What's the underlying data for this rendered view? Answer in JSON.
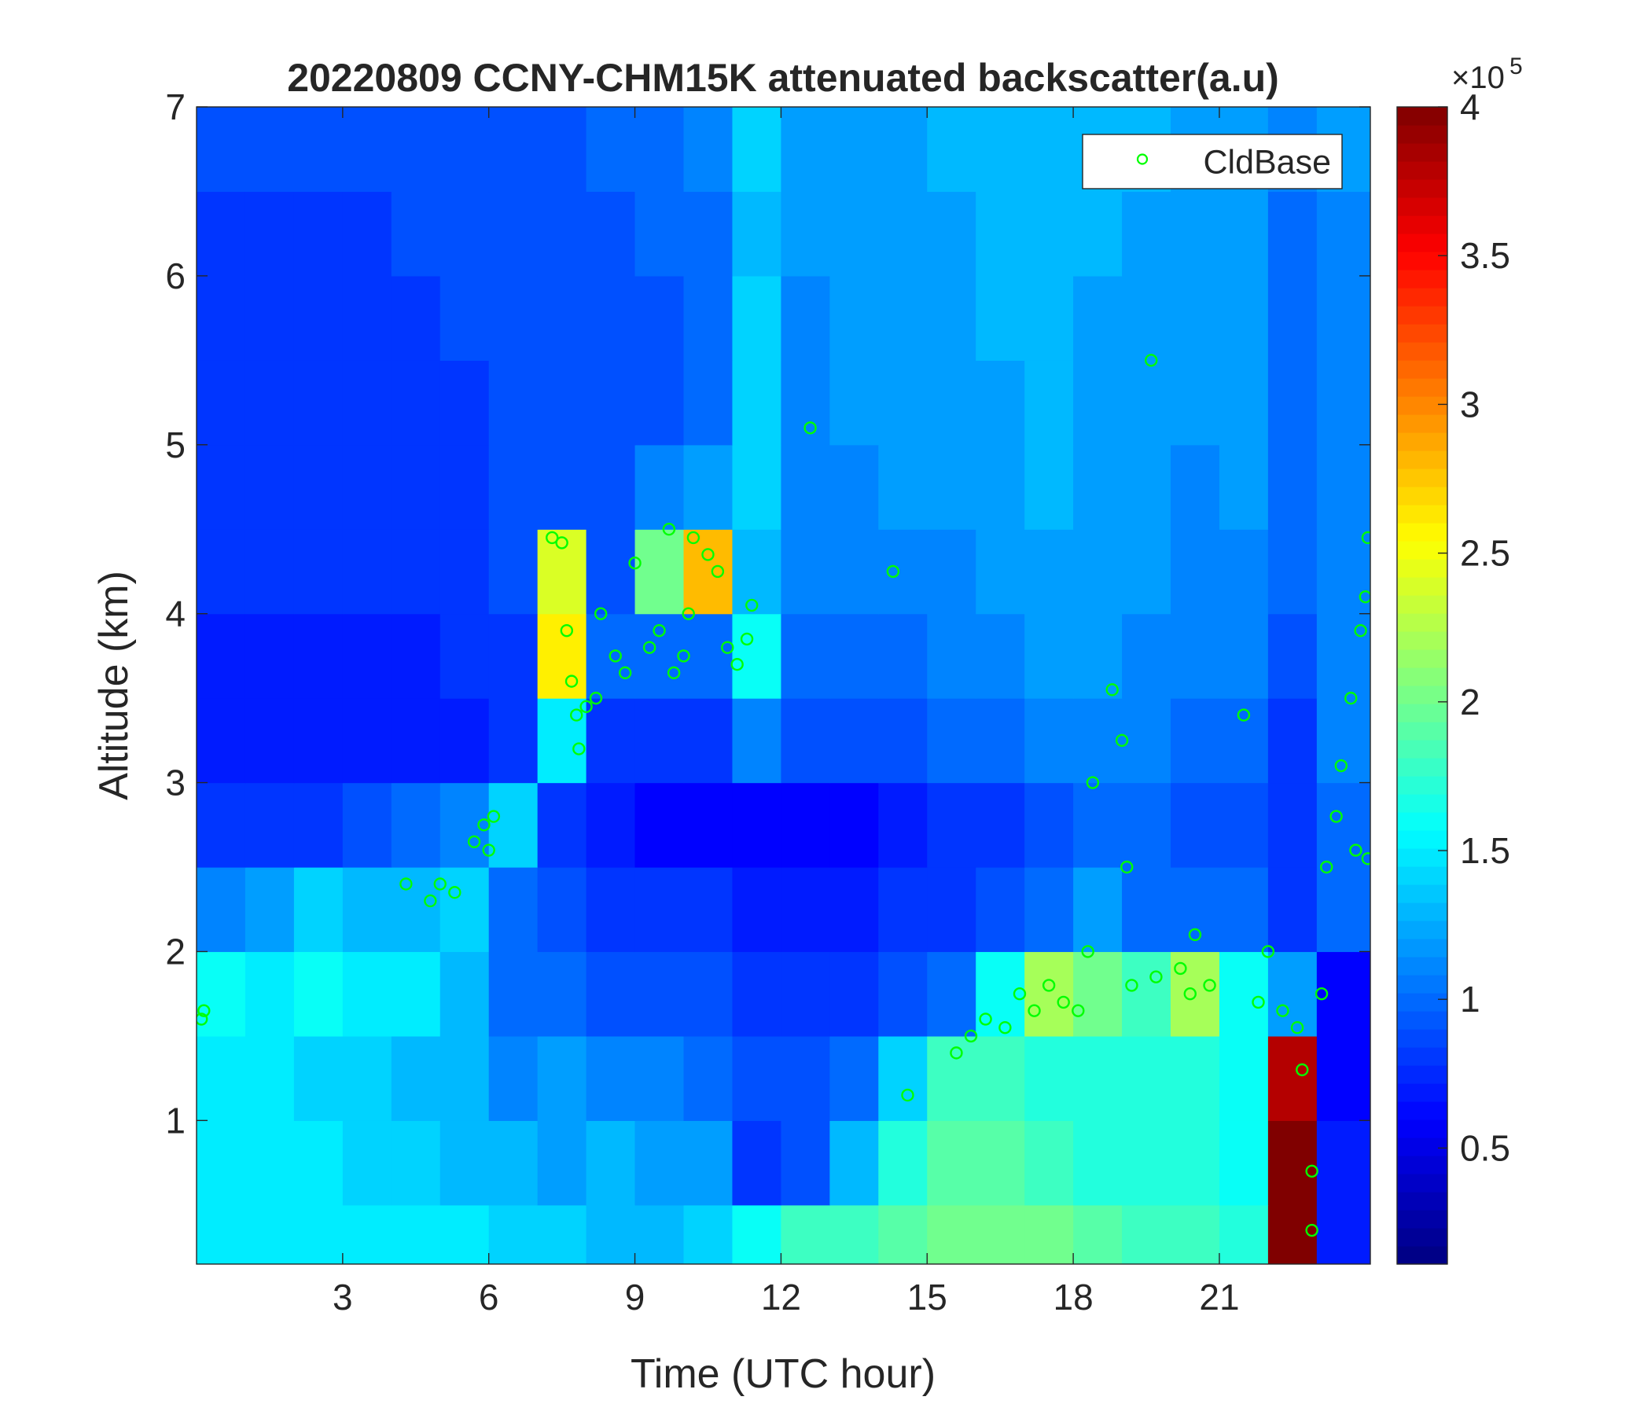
{
  "chart_data": {
    "type": "heatmap",
    "title": "20220809 CCNY-CHM15K attenuated backscatter(a.u)",
    "x_label": "Time (UTC hour)",
    "y_label": "Altitude (km)",
    "xlim": [
      0,
      24.1
    ],
    "ylim": [
      0.15,
      7
    ],
    "xticks": [
      3,
      6,
      9,
      12,
      15,
      18,
      21
    ],
    "yticks": [
      1,
      2,
      3,
      4,
      5,
      6,
      7
    ],
    "colormap": "jet",
    "clim": [
      0.11,
      4
    ],
    "colorbar_ticks": [
      0.5,
      1,
      1.5,
      2,
      2.5,
      3,
      3.5,
      4
    ],
    "colorbar_multiplier": "×10",
    "colorbar_exponent": "5",
    "z_x": [
      0,
      1,
      2,
      3,
      4,
      5,
      6,
      7,
      8,
      9,
      10,
      11,
      12,
      13,
      14,
      15,
      16,
      17,
      18,
      19,
      20,
      21,
      22,
      23,
      24.1
    ],
    "z_y": [
      0.15,
      0.5,
      1,
      1.5,
      2,
      2.5,
      3,
      3.5,
      4,
      4.5,
      5,
      5.5,
      6,
      6.5,
      7
    ],
    "z": [
      [
        1.5,
        1.5,
        1.5,
        1.5,
        1.5,
        1.5,
        1.4,
        1.4,
        1.3,
        1.3,
        1.4,
        1.6,
        1.8,
        1.8,
        1.9,
        2.0,
        2.0,
        2.0,
        1.9,
        1.8,
        1.8,
        1.7,
        4,
        0.7
      ],
      [
        1.5,
        1.5,
        1.5,
        1.4,
        1.4,
        1.3,
        1.3,
        1.2,
        1.3,
        1.2,
        1.2,
        0.8,
        0.9,
        1.3,
        1.7,
        1.9,
        1.9,
        1.8,
        1.7,
        1.7,
        1.7,
        1.6,
        4,
        0.7
      ],
      [
        1.5,
        1.5,
        1.4,
        1.4,
        1.3,
        1.3,
        1.1,
        1.2,
        1.1,
        1.1,
        1.0,
        0.9,
        0.9,
        1.0,
        1.4,
        1.8,
        1.8,
        1.7,
        1.7,
        1.7,
        1.7,
        1.6,
        3.8,
        0.6
      ],
      [
        1.6,
        1.5,
        1.6,
        1.5,
        1.5,
        1.3,
        1.0,
        1.0,
        0.9,
        0.9,
        0.9,
        0.8,
        0.8,
        0.8,
        0.9,
        1.0,
        1.6,
        2.2,
        2.0,
        1.8,
        2.2,
        1.6,
        1.2,
        0.6
      ],
      [
        1.1,
        1.2,
        1.4,
        1.3,
        1.3,
        1.4,
        1.0,
        0.9,
        0.8,
        0.8,
        0.8,
        0.7,
        0.7,
        0.7,
        0.8,
        0.8,
        0.9,
        1.0,
        1.2,
        1.0,
        1.0,
        1.0,
        0.8,
        1.0
      ],
      [
        0.8,
        0.8,
        0.8,
        0.9,
        1.0,
        1.1,
        1.4,
        0.8,
        0.7,
        0.6,
        0.6,
        0.6,
        0.6,
        0.6,
        0.7,
        0.8,
        0.8,
        0.9,
        1.0,
        1.0,
        0.9,
        0.9,
        0.8,
        1.0
      ],
      [
        0.7,
        0.7,
        0.7,
        0.7,
        0.7,
        0.7,
        0.8,
        1.5,
        0.8,
        0.8,
        0.8,
        1.1,
        0.9,
        0.9,
        0.9,
        1.0,
        1.0,
        1.1,
        1.1,
        1.1,
        1.0,
        1.0,
        0.8,
        1.1
      ],
      [
        0.7,
        0.7,
        0.7,
        0.7,
        0.7,
        0.8,
        0.8,
        2.6,
        1.0,
        1.0,
        1.0,
        1.6,
        1.0,
        1.0,
        1.0,
        1.1,
        1.1,
        1.2,
        1.2,
        1.1,
        1.1,
        1.1,
        0.9,
        1.1
      ],
      [
        0.8,
        0.8,
        0.8,
        0.8,
        0.8,
        0.8,
        0.9,
        2.4,
        0.9,
        2.0,
        2.8,
        1.3,
        1.1,
        1.1,
        1.1,
        1.1,
        1.2,
        1.2,
        1.2,
        1.2,
        1.1,
        1.1,
        1.0,
        1.1
      ],
      [
        0.8,
        0.8,
        0.8,
        0.8,
        0.8,
        0.8,
        0.9,
        0.9,
        0.9,
        1.1,
        1.2,
        1.4,
        1.1,
        1.1,
        1.2,
        1.2,
        1.2,
        1.3,
        1.2,
        1.2,
        1.1,
        1.2,
        1.0,
        1.1
      ],
      [
        0.8,
        0.8,
        0.8,
        0.8,
        0.8,
        0.8,
        0.9,
        0.9,
        0.9,
        0.9,
        1.0,
        1.4,
        1.1,
        1.2,
        1.2,
        1.2,
        1.2,
        1.3,
        1.2,
        1.2,
        1.2,
        1.2,
        1.0,
        1.1
      ],
      [
        0.8,
        0.8,
        0.8,
        0.8,
        0.8,
        0.9,
        0.9,
        0.9,
        0.9,
        0.9,
        1.0,
        1.4,
        1.1,
        1.2,
        1.2,
        1.2,
        1.3,
        1.3,
        1.2,
        1.2,
        1.2,
        1.2,
        1.0,
        1.1
      ],
      [
        0.8,
        0.8,
        0.8,
        0.8,
        0.9,
        0.9,
        0.9,
        0.9,
        0.9,
        1.0,
        1.0,
        1.3,
        1.2,
        1.2,
        1.2,
        1.2,
        1.3,
        1.3,
        1.3,
        1.2,
        1.2,
        1.2,
        1.0,
        1.1
      ],
      [
        0.9,
        0.9,
        0.9,
        0.9,
        0.9,
        0.9,
        0.9,
        0.9,
        1.0,
        1.0,
        1.1,
        1.4,
        1.2,
        1.2,
        1.2,
        1.3,
        1.3,
        1.3,
        1.3,
        1.3,
        1.2,
        1.2,
        1.1,
        1.2
      ]
    ],
    "legend": "northeast",
    "series": [
      {
        "name": "CldBase",
        "color": "#00ff00",
        "x": [
          0.1,
          0.15,
          4.3,
          4.8,
          5.0,
          5.3,
          5.9,
          6.1,
          6.0,
          5.7,
          7.3,
          7.5,
          7.6,
          7.7,
          7.8,
          7.85,
          8.0,
          8.2,
          8.3,
          8.6,
          8.8,
          9.0,
          9.3,
          9.5,
          9.7,
          9.8,
          10.0,
          10.1,
          10.2,
          10.5,
          10.7,
          10.9,
          11.1,
          11.3,
          11.4,
          12.6,
          14.3,
          14.6,
          15.6,
          15.9,
          16.2,
          16.6,
          16.9,
          17.2,
          17.5,
          17.8,
          18.1,
          18.3,
          18.4,
          18.8,
          19.0,
          19.1,
          19.2,
          19.6,
          19.7,
          20.2,
          20.4,
          20.5,
          20.8,
          21.5,
          21.8,
          22.0,
          22.3,
          22.6,
          22.7,
          22.9,
          22.9,
          23.1,
          23.2,
          23.4,
          23.5,
          23.7,
          23.8,
          23.9,
          24.0,
          24.05,
          24.05
        ],
        "y": [
          1.6,
          1.65,
          2.4,
          2.3,
          2.4,
          2.35,
          2.75,
          2.8,
          2.6,
          2.65,
          4.45,
          4.42,
          3.9,
          3.6,
          3.4,
          3.2,
          3.45,
          3.5,
          4.0,
          3.75,
          3.65,
          4.3,
          3.8,
          3.9,
          4.5,
          3.65,
          3.75,
          4.0,
          4.45,
          4.35,
          4.25,
          3.8,
          3.7,
          3.85,
          4.05,
          5.1,
          4.25,
          1.15,
          1.4,
          1.5,
          1.6,
          1.55,
          1.75,
          1.65,
          1.8,
          1.7,
          1.65,
          2.0,
          3.0,
          3.55,
          3.25,
          2.5,
          1.8,
          5.5,
          1.85,
          1.9,
          1.75,
          2.1,
          1.8,
          3.4,
          1.7,
          2.0,
          1.65,
          1.55,
          1.3,
          0.7,
          0.35,
          1.75,
          2.5,
          2.8,
          3.1,
          3.5,
          2.6,
          3.9,
          4.1,
          4.45,
          2.55
        ]
      }
    ]
  }
}
